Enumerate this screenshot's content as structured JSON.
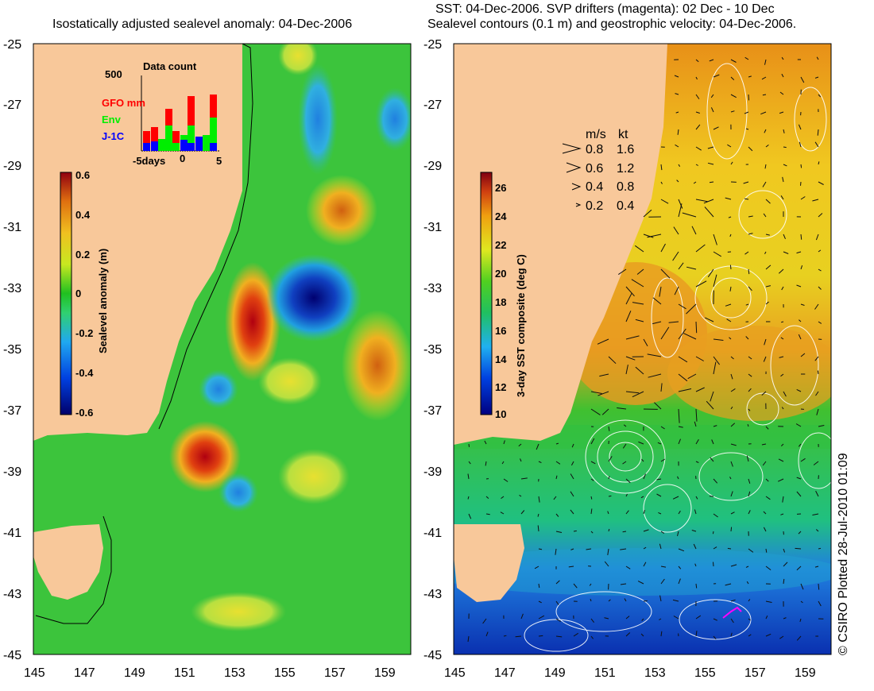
{
  "left_panel": {
    "title": "Isostatically adjusted sealevel anomaly: 04-Dec-2006",
    "y_ticks": [
      "-25",
      "-27",
      "-29",
      "-31",
      "-33",
      "-35",
      "-37",
      "-39",
      "-41",
      "-43",
      "-45"
    ],
    "x_ticks": [
      "145",
      "147",
      "149",
      "151",
      "153",
      "155",
      "157",
      "159"
    ],
    "colorbar": {
      "label": "Sealevel anomaly (m)",
      "ticks": [
        "0.6",
        "0.4",
        "0.2",
        "0",
        "-0.2",
        "-0.4",
        "-0.6"
      ],
      "range": [
        -0.6,
        0.6
      ]
    },
    "data_count": {
      "title": "Data count",
      "y_max_label": "500",
      "x_ticks": [
        "-5days",
        "0",
        "5"
      ],
      "legend": [
        {
          "name": "GFO mm",
          "color": "#ff0000"
        },
        {
          "name": "Env",
          "color": "#00ee00"
        },
        {
          "name": "J-1C",
          "color": "#0000ff"
        }
      ]
    }
  },
  "right_panel": {
    "title_line1": "SST: 04-Dec-2006. SVP drifters (magenta): 02 Dec - 10 Dec",
    "title_line2": "Sealevel contours (0.1 m) and geostrophic velocity: 04-Dec-2006.",
    "y_ticks": [
      "-25",
      "-27",
      "-29",
      "-31",
      "-33",
      "-35",
      "-37",
      "-39",
      "-41",
      "-43",
      "-45"
    ],
    "x_ticks": [
      "145",
      "147",
      "149",
      "151",
      "153",
      "155",
      "157",
      "159"
    ],
    "colorbar": {
      "label": "3-day SST composite (deg C)",
      "ticks": [
        "26",
        "24",
        "22",
        "20",
        "18",
        "16",
        "14",
        "12",
        "10"
      ],
      "range": [
        10,
        27
      ]
    },
    "velocity_legend": {
      "header_ms": "m/s",
      "header_kt": "kt",
      "rows": [
        {
          "ms": "0.8",
          "kt": "1.6"
        },
        {
          "ms": "0.6",
          "kt": "1.2"
        },
        {
          "ms": "0.4",
          "kt": "0.8"
        },
        {
          "ms": "0.2",
          "kt": "0.4"
        }
      ]
    },
    "credit": "© CSIRO Plotted 28-Jul-2010 01:09"
  },
  "colors": {
    "land": "#f8c89a",
    "sla_base": "#3cc43c",
    "sst_warm": "#f0a020",
    "sst_mid": "#20c030",
    "sst_cold": "#1040c0"
  }
}
